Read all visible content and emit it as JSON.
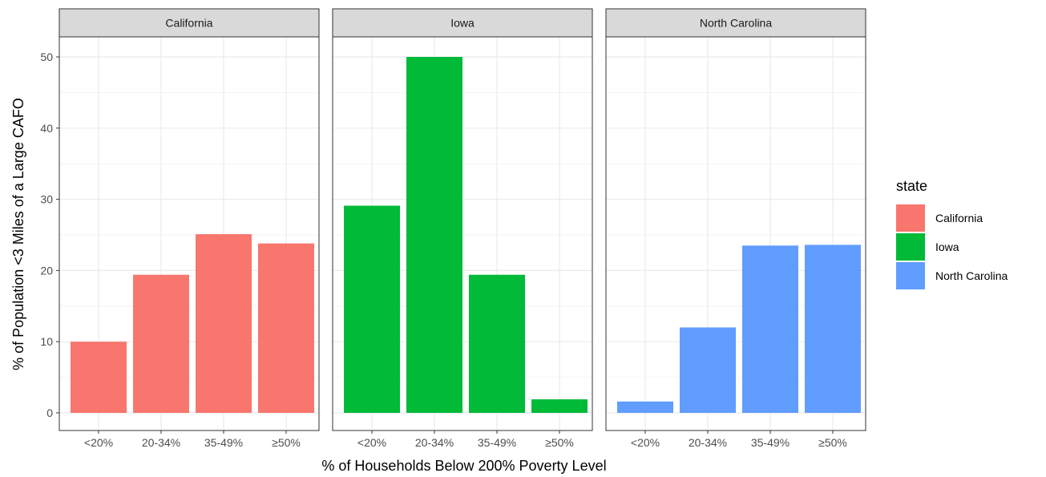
{
  "chart_data": {
    "type": "bar",
    "faceted": true,
    "facet_variable": "state",
    "xlabel": "% of Households Below 200% Poverty Level",
    "ylabel": "% of Population <3 Miles of a Large CAFO",
    "ylim": [
      0,
      53
    ],
    "yticks": [
      0,
      10,
      20,
      30,
      40,
      50
    ],
    "grid": true,
    "categories": [
      "<20%",
      "20-34%",
      "35-49%",
      "≥50%"
    ],
    "legend": {
      "title": "state",
      "position": "right"
    },
    "series": [
      {
        "name": "California",
        "color": "#F8766D",
        "values": [
          10.0,
          19.4,
          25.1,
          23.8
        ]
      },
      {
        "name": "Iowa",
        "color": "#00BA38",
        "values": [
          29.1,
          50.0,
          19.4,
          1.9
        ]
      },
      {
        "name": "North Carolina",
        "color": "#619CFF",
        "values": [
          1.6,
          12.0,
          23.5,
          23.6
        ]
      }
    ]
  }
}
